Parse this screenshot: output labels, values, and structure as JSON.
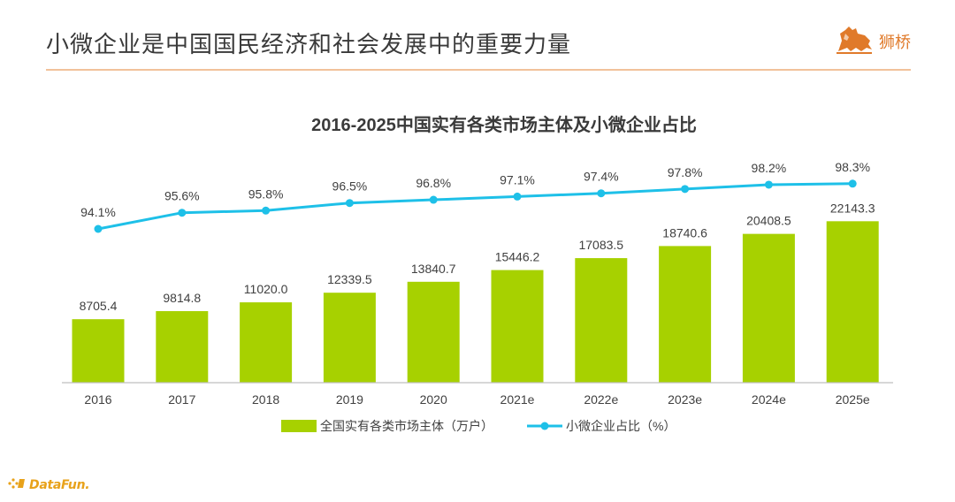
{
  "slide": {
    "title": "小微企业是中国国民经济和社会发展中的重要力量",
    "brand": "狮桥",
    "footer_brand": "DataFun."
  },
  "colors": {
    "bar": "#a7d100",
    "line": "#1ec0e8",
    "axis": "#bfbfbf",
    "brand": "#e07a2a",
    "footer": "#e8a21a",
    "divider": "#f2c29a"
  },
  "chart_data": {
    "type": "bar+line",
    "title": "2016-2025中国实有各类市场主体及小微企业占比",
    "categories": [
      "2016",
      "2017",
      "2018",
      "2019",
      "2020",
      "2021e",
      "2022e",
      "2023e",
      "2024e",
      "2025e"
    ],
    "series": [
      {
        "name": "全国实有各类市场主体（万户）",
        "type": "bar",
        "values": [
          8705.4,
          9814.8,
          11020.0,
          12339.5,
          13840.7,
          15446.2,
          17083.5,
          18740.6,
          20408.5,
          22143.3
        ],
        "labels": [
          "8705.4",
          "9814.8",
          "11020.0",
          "12339.5",
          "13840.7",
          "15446.2",
          "17083.5",
          "18740.6",
          "20408.5",
          "22143.3"
        ]
      },
      {
        "name": "小微企业占比（%）",
        "type": "line",
        "values": [
          94.1,
          95.6,
          95.8,
          96.5,
          96.8,
          97.1,
          97.4,
          97.8,
          98.2,
          98.3
        ],
        "labels": [
          "94.1%",
          "95.6%",
          "95.8%",
          "96.5%",
          "96.8%",
          "97.1%",
          "97.4%",
          "97.8%",
          "98.2%",
          "98.3%"
        ]
      }
    ],
    "legend_position": "bottom",
    "grid": false
  }
}
